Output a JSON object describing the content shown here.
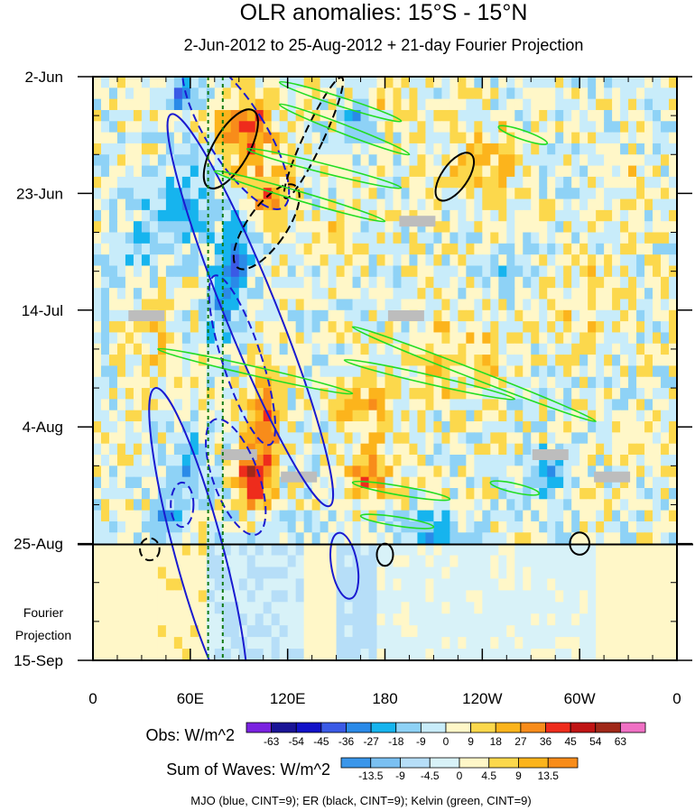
{
  "chart_data": {
    "type": "heatmap",
    "title": "OLR anomalies: 15°S - 15°N",
    "subtitle": "2-Jun-2012 to 25-Aug-2012 + 21-day Fourier Projection",
    "x_tick_labels": [
      "0",
      "60E",
      "120E",
      "180",
      "120W",
      "60W",
      "0"
    ],
    "y_tick_labels": [
      "2-Jun",
      "23-Jun",
      "14-Jul",
      "4-Aug",
      "25-Aug",
      "15-Sep"
    ],
    "projection_label_line1": "Fourier",
    "projection_label_line2": "Projection",
    "x_range_deg_east": [
      0,
      360
    ],
    "y_range_days": [
      0,
      105
    ],
    "observed_end_day": 84,
    "grid": false,
    "obs_colorbar": {
      "label": "Obs: W/m^2",
      "levels": [
        "-63",
        "-54",
        "-45",
        "-36",
        "-27",
        "-18",
        "-9",
        "0",
        "9",
        "18",
        "27",
        "36",
        "45",
        "54",
        "63"
      ],
      "colors": [
        "#7a22e0",
        "#1a1496",
        "#1212c8",
        "#3a5ae6",
        "#2a8ae8",
        "#16b4ee",
        "#8ed2f6",
        "#c8ecfa",
        "#fff7c8",
        "#fcd84c",
        "#fcb41c",
        "#f88c1a",
        "#ee2c1c",
        "#c01414",
        "#a02818",
        "#f070c4"
      ]
    },
    "waves_colorbar": {
      "label": "Sum of Waves: W/m^2",
      "levels": [
        "-13.5",
        "-9",
        "-4.5",
        "0",
        "4.5",
        "9",
        "13.5"
      ],
      "colors": [
        "#3a96ea",
        "#7ac0f2",
        "#b6def8",
        "#d8f2f8",
        "#fff7c8",
        "#fcd84c",
        "#fcb41c",
        "#f88c1a"
      ]
    },
    "wave_legend": "MJO (blue, CINT=9); ER (black, CINT=9); Kelvin (green, CINT=9)",
    "wave_colors": {
      "MJO": "#1a1ad0",
      "ER": "#000000",
      "Kelvin": "#22dd22"
    },
    "reference_longitudes": [
      71,
      80
    ],
    "mjo_contours": [
      {
        "lon": 88,
        "day": 10,
        "ax_lon": 18,
        "ax_day": 16,
        "rot": -32,
        "dashed": true
      },
      {
        "lon": 97,
        "day": 42,
        "ax_lon": 16,
        "ax_day": 38,
        "rot": -22,
        "dashed": false
      },
      {
        "lon": 92,
        "day": 51,
        "ax_lon": 12,
        "ax_day": 16,
        "rot": -18,
        "dashed": true
      },
      {
        "lon": 88,
        "day": 72,
        "ax_lon": 14,
        "ax_day": 11,
        "rot": -20,
        "dashed": true
      },
      {
        "lon": 65,
        "day": 85,
        "ax_lon": 15,
        "ax_day": 30,
        "rot": -15,
        "dashed": false
      },
      {
        "lon": 155,
        "day": 88,
        "ax_lon": 8,
        "ax_day": 6,
        "rot": -10,
        "dashed": false
      },
      {
        "lon": 55,
        "day": 77,
        "ax_lon": 7,
        "ax_day": 4,
        "rot": 0,
        "dashed": true
      }
    ],
    "er_contours": [
      {
        "lon": 85,
        "day": 13,
        "ax_lon": 11,
        "ax_day": 8,
        "rot": 30,
        "dashed": false
      },
      {
        "lon": 136,
        "day": 11,
        "ax_lon": 6,
        "ax_day": 12,
        "rot": 25,
        "dashed": true
      },
      {
        "lon": 107,
        "day": 27,
        "ax_lon": 12,
        "ax_day": 9,
        "rot": 35,
        "dashed": true
      },
      {
        "lon": 223,
        "day": 18,
        "ax_lon": 8,
        "ax_day": 5,
        "rot": 35,
        "dashed": false
      },
      {
        "lon": 180,
        "day": 86,
        "ax_lon": 5,
        "ax_day": 2,
        "rot": 0,
        "dashed": false
      },
      {
        "lon": 300,
        "day": 84,
        "ax_lon": 6,
        "ax_day": 2,
        "rot": 0,
        "dashed": false
      },
      {
        "lon": 35,
        "day": 85,
        "ax_lon": 6,
        "ax_day": 2,
        "rot": 0,
        "dashed": true
      }
    ],
    "kelvin_contours": [
      {
        "lon_start": 115,
        "day_start": 1,
        "lon_end": 190,
        "day_end": 8
      },
      {
        "lon_start": 115,
        "day_start": 5,
        "lon_end": 195,
        "day_end": 14
      },
      {
        "lon_start": 95,
        "day_start": 13,
        "lon_end": 190,
        "day_end": 20
      },
      {
        "lon_start": 75,
        "day_start": 17,
        "lon_end": 180,
        "day_end": 26
      },
      {
        "lon_start": 250,
        "day_start": 9,
        "lon_end": 280,
        "day_end": 12
      },
      {
        "lon_start": 160,
        "day_start": 45,
        "lon_end": 310,
        "day_end": 62
      },
      {
        "lon_start": 40,
        "day_start": 49,
        "lon_end": 160,
        "day_end": 57
      },
      {
        "lon_start": 155,
        "day_start": 51,
        "lon_end": 260,
        "day_end": 58
      },
      {
        "lon_start": 160,
        "day_start": 73,
        "lon_end": 220,
        "day_end": 76
      },
      {
        "lon_start": 165,
        "day_start": 79,
        "lon_end": 210,
        "day_end": 81
      },
      {
        "lon_start": 245,
        "day_start": 73,
        "lon_end": 275,
        "day_end": 75
      }
    ],
    "missing_data_patches": [
      {
        "lon": 200,
        "day": 26
      },
      {
        "lon": 33,
        "day": 43
      },
      {
        "lon": 193,
        "day": 43
      },
      {
        "lon": 90,
        "day": 68
      },
      {
        "lon": 127,
        "day": 72
      },
      {
        "lon": 282,
        "day": 68
      },
      {
        "lon": 320,
        "day": 72
      }
    ]
  }
}
